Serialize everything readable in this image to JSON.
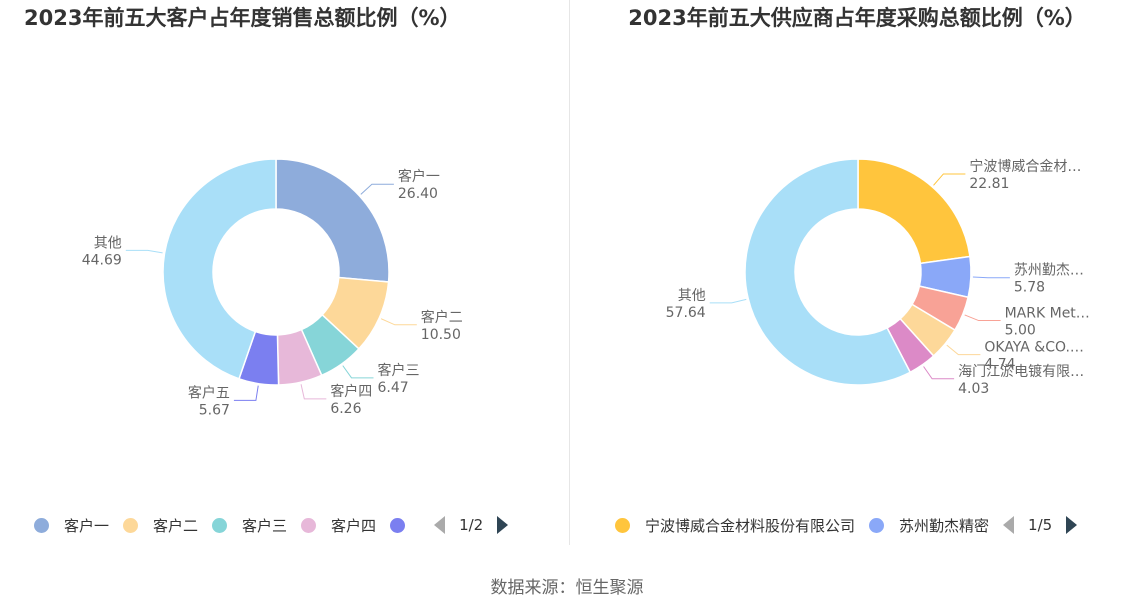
{
  "chart_data": [
    {
      "type": "pie",
      "title": "2023年前五大客户占年度销售总额比例（%）",
      "categories": [
        "客户一",
        "客户二",
        "客户三",
        "客户四",
        "客户五",
        "其他"
      ],
      "values": [
        26.4,
        10.5,
        6.47,
        6.26,
        5.67,
        44.69
      ],
      "value_labels": [
        "26.40",
        "10.50",
        "6.47",
        "6.26",
        "5.67",
        "44.69"
      ],
      "colors": [
        "#8eacdb",
        "#fdd899",
        "#86d5d8",
        "#e7b8d9",
        "#7b7ff0",
        "#a9dff8"
      ],
      "legend": {
        "position": "bottom",
        "items": [
          {
            "label": "客户一",
            "color": "#8eacdb"
          },
          {
            "label": "客户二",
            "color": "#fdd899"
          },
          {
            "label": "客户三",
            "color": "#86d5d8"
          },
          {
            "label": "客户四",
            "color": "#e7b8d9"
          },
          {
            "label": "客户五",
            "color": "#7b7ff0"
          }
        ],
        "page": "1/2"
      }
    },
    {
      "type": "pie",
      "title": "2023年前五大供应商占年度采购总额比例（%）",
      "categories": [
        "宁波博威合金材料股份有限公司",
        "苏州勤杰精密",
        "MARK Met…",
        "OKAYA &CO.…",
        "海门江淤电镀有限…",
        "其他"
      ],
      "display_labels": [
        "宁波博威合金材…",
        "苏州勤杰…",
        "MARK Met…",
        "OKAYA &CO.…",
        "海门江淤电镀有限…",
        "其他"
      ],
      "values": [
        22.81,
        5.78,
        5.0,
        4.74,
        4.03,
        57.64
      ],
      "value_labels": [
        "22.81",
        "5.78",
        "5.00",
        "4.74",
        "4.03",
        "57.64"
      ],
      "colors": [
        "#ffc53d",
        "#8aa8f8",
        "#f8a296",
        "#fdd899",
        "#dc8ac7",
        "#a9dff8"
      ],
      "legend": {
        "position": "bottom",
        "items": [
          {
            "label": "宁波博威合金材料股份有限公司",
            "color": "#ffc53d"
          },
          {
            "label": "苏州勤杰精密",
            "color": "#8aa8f8"
          }
        ],
        "page": "1/5"
      }
    }
  ],
  "source": "数据来源：恒生聚源"
}
